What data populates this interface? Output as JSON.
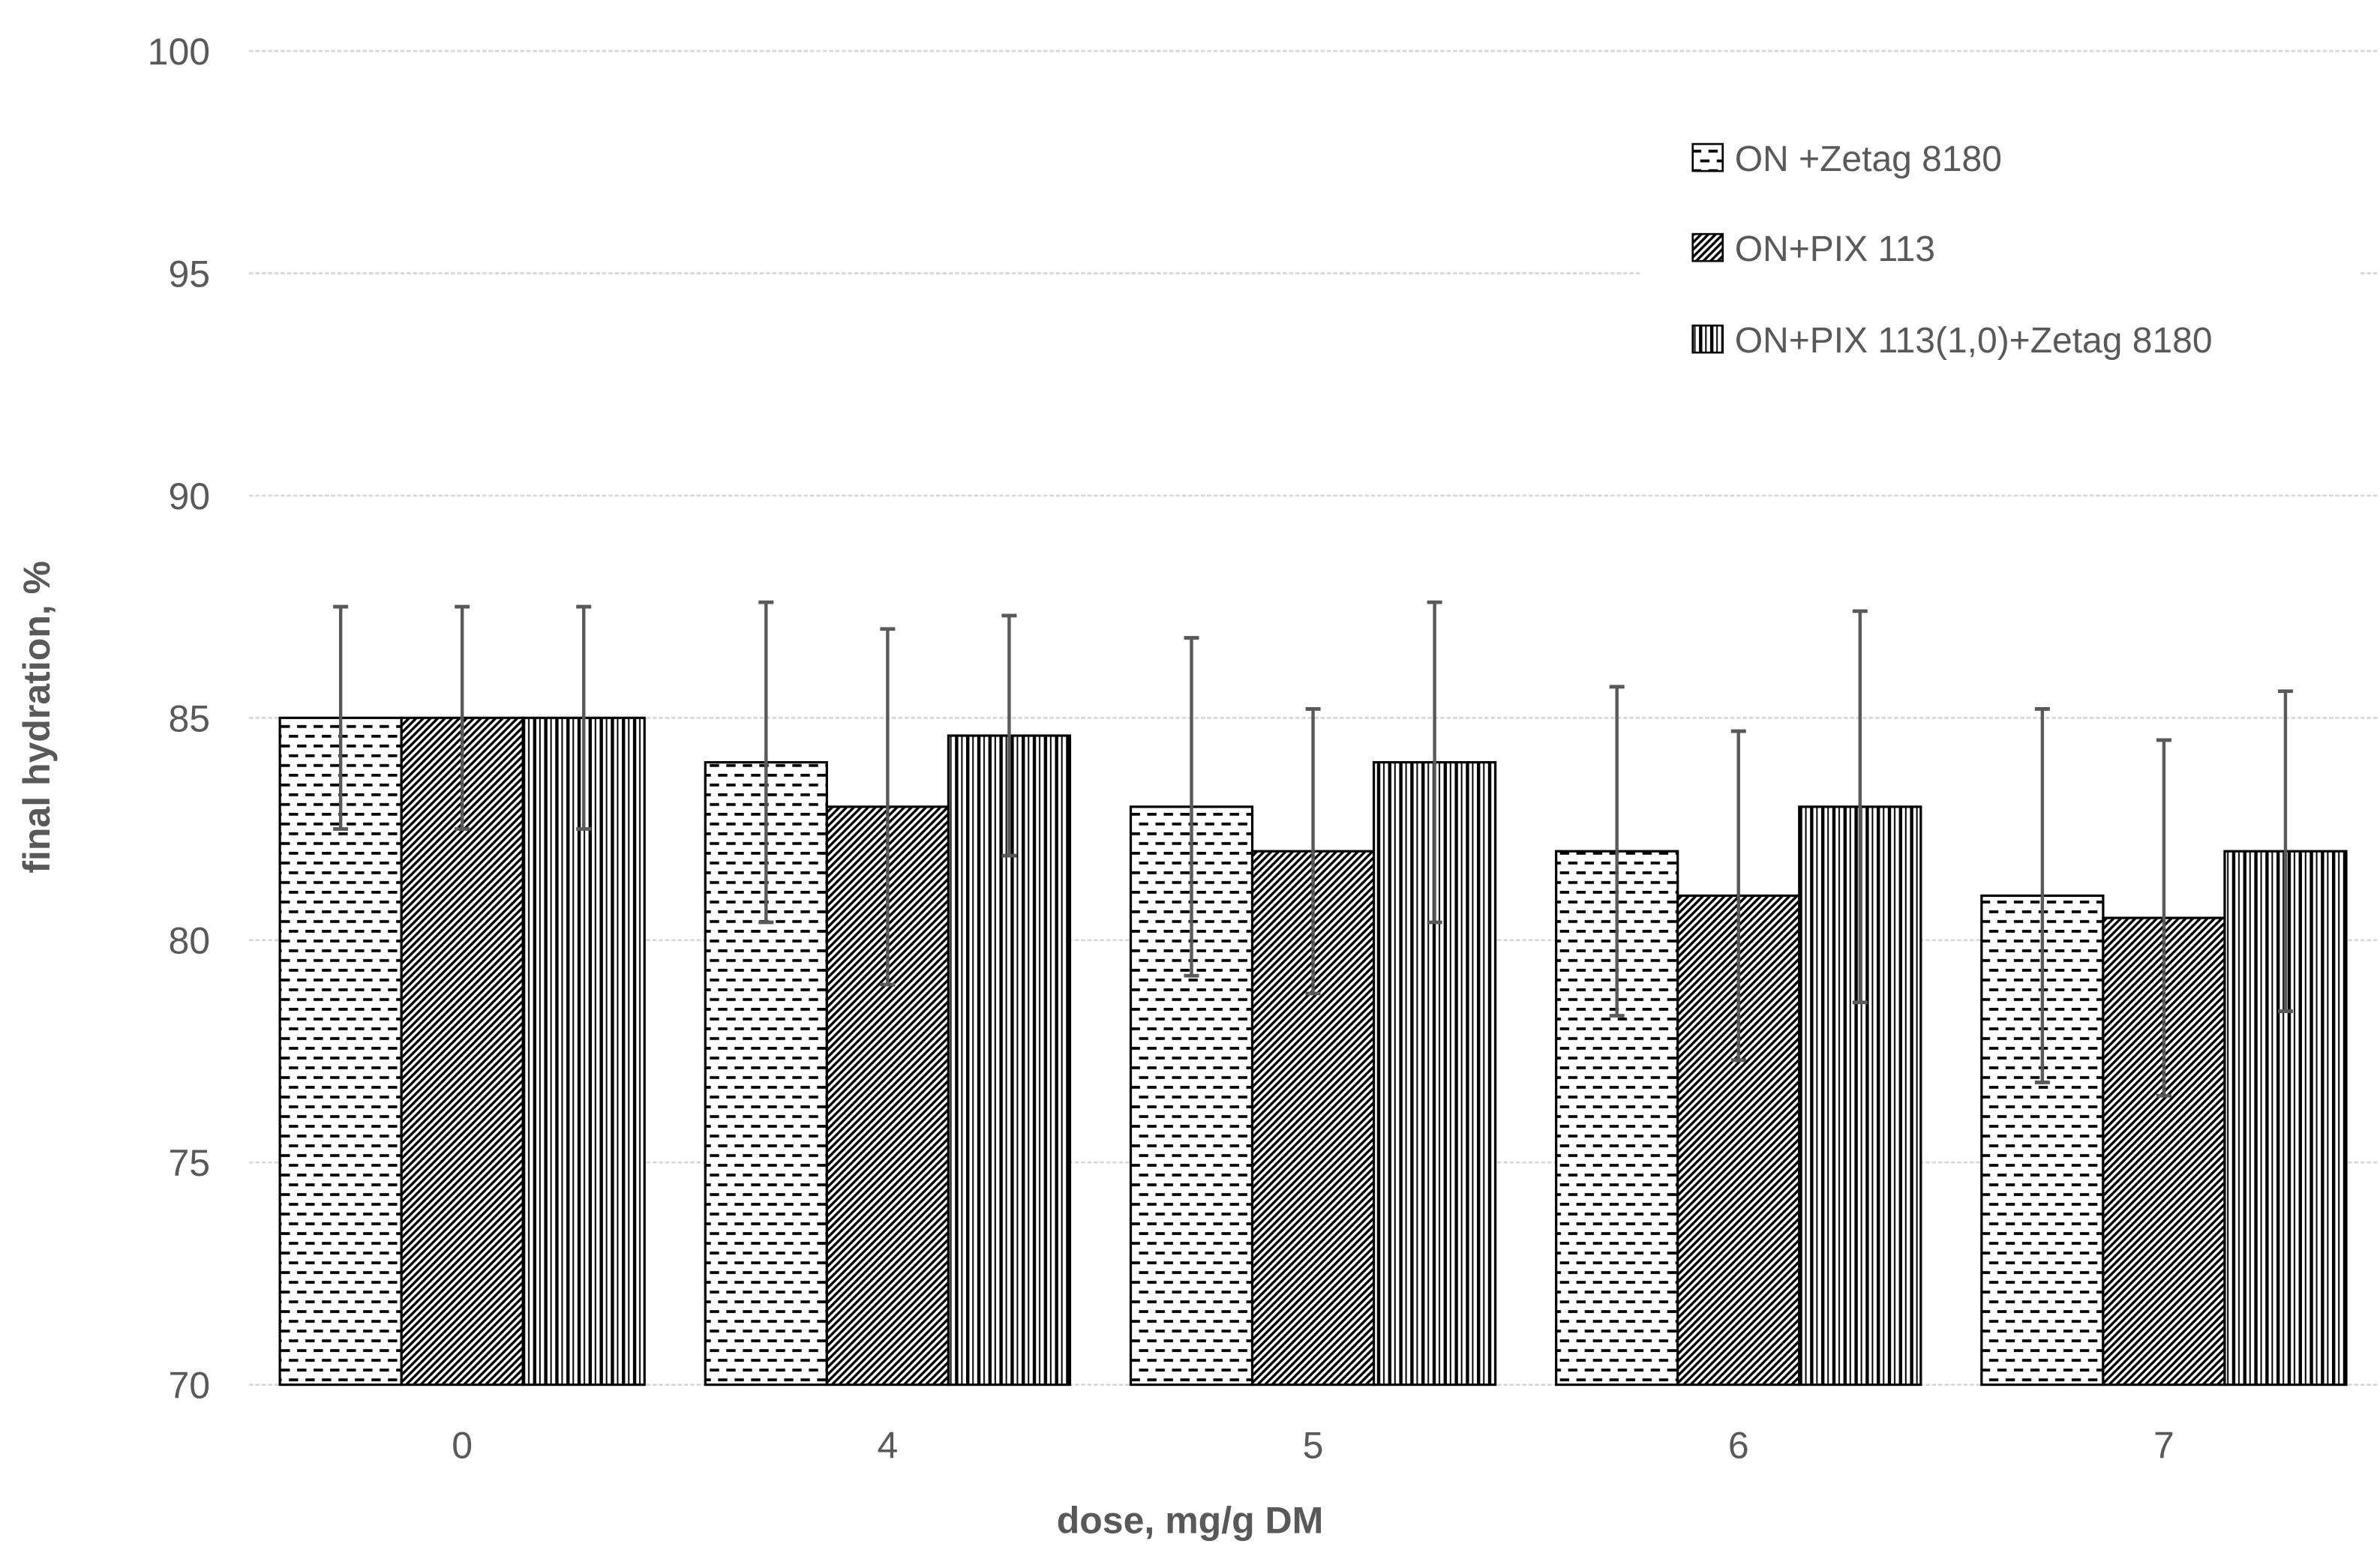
{
  "chart_data": {
    "type": "bar",
    "title": "",
    "xlabel": "dose, mg/g DM",
    "ylabel": "final hydration, %",
    "categories": [
      "0",
      "4",
      "5",
      "6",
      "7"
    ],
    "series": [
      {
        "name": "ON +Zetag 8180",
        "pattern": "horizontal-dashes",
        "values": [
          85.0,
          84.0,
          83.0,
          82.0,
          81.0
        ],
        "errors": [
          2.5,
          3.6,
          3.8,
          3.7,
          4.2
        ]
      },
      {
        "name": "ON+PIX 113",
        "pattern": "diagonal-hatch",
        "values": [
          85.0,
          83.0,
          82.0,
          81.0,
          80.5
        ],
        "errors": [
          2.5,
          4.0,
          3.2,
          3.7,
          4.0
        ]
      },
      {
        "name": "ON+PIX 113(1,0)+Zetag 8180",
        "pattern": "vertical-lines",
        "values": [
          85.0,
          84.6,
          84.0,
          83.0,
          82.0
        ],
        "errors": [
          2.5,
          2.7,
          3.6,
          4.4,
          3.6
        ]
      }
    ],
    "ylim": [
      70,
      100
    ],
    "yticks": [
      100,
      95,
      90,
      85,
      80,
      75,
      70
    ],
    "xtick_step": 5,
    "grid": "horizontal-dashed",
    "legend_position": "upper-right",
    "error_bars": "both-directions-with-caps",
    "colors": {
      "bar_fill": "#ffffff",
      "bar_stroke": "#000000",
      "pattern_ink": "#000000",
      "error_bar": "#595959",
      "gridline": "#d9d9d9",
      "text": "#595959",
      "background": "#ffffff"
    }
  }
}
